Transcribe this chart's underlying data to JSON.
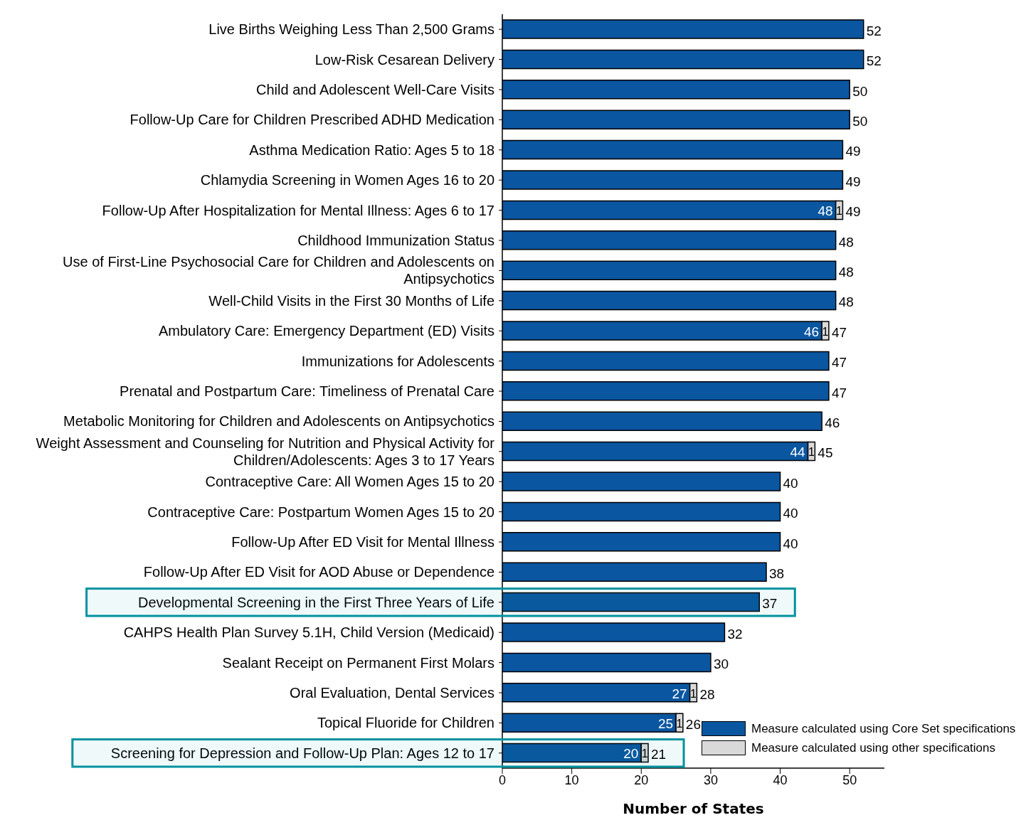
{
  "chart_data": {
    "type": "bar",
    "orientation": "horizontal",
    "stacked": true,
    "xlabel": "Number of States",
    "categories": [
      "Live Births Weighing Less Than 2,500 Grams",
      "Low-Risk Cesarean Delivery",
      "Child and Adolescent Well-Care Visits",
      "Follow-Up Care for Children Prescribed ADHD Medication",
      "Asthma Medication Ratio: Ages 5 to 18",
      "Chlamydia Screening in Women Ages 16 to 20",
      "Follow-Up After Hospitalization for Mental Illness: Ages 6 to 17",
      "Childhood Immunization Status",
      "Use of First-Line Psychosocial Care for Children and Adolescents on Antipsychotics",
      "Well-Child Visits in the First 30 Months of Life",
      "Ambulatory Care: Emergency Department (ED) Visits",
      "Immunizations for Adolescents",
      "Prenatal and Postpartum Care: Timeliness of Prenatal Care",
      "Metabolic Monitoring for Children and Adolescents on Antipsychotics",
      "Weight Assessment and Counseling for Nutrition and Physical Activity for Children/Adolescents: Ages 3 to 17 Years",
      "Contraceptive Care: All Women Ages 15 to 20",
      "Contraceptive Care: Postpartum Women Ages 15 to 20",
      "Follow-Up After ED Visit for Mental Illness",
      "Follow-Up After ED Visit for AOD Abuse or Dependence",
      "Developmental Screening in the First Three Years of Life",
      "CAHPS Health Plan Survey 5.1H, Child Version (Medicaid)",
      "Sealant Receipt on Permanent First Molars",
      "Oral Evaluation, Dental Services",
      "Topical Fluoride for Children",
      "Screening for Depression and Follow-Up Plan: Ages 12 to 17"
    ],
    "series": [
      {
        "name": "Measure calculated using Core Set specifications",
        "color": "#0a56a0",
        "values": [
          52,
          52,
          50,
          50,
          49,
          49,
          48,
          48,
          48,
          48,
          46,
          47,
          47,
          46,
          44,
          40,
          40,
          40,
          38,
          37,
          32,
          30,
          27,
          25,
          20
        ],
        "value_labels": [
          null,
          null,
          null,
          null,
          null,
          null,
          "48",
          null,
          null,
          null,
          "46",
          null,
          null,
          null,
          "44",
          null,
          null,
          null,
          null,
          null,
          null,
          null,
          "27",
          "25",
          "20"
        ]
      },
      {
        "name": "Measure calculated using other specifications",
        "color": "#d9d9d9",
        "values": [
          0,
          0,
          0,
          0,
          0,
          0,
          1,
          0,
          0,
          0,
          1,
          0,
          0,
          0,
          1,
          0,
          0,
          0,
          0,
          0,
          0,
          0,
          1,
          1,
          1
        ],
        "value_labels": [
          null,
          null,
          null,
          null,
          null,
          null,
          "1",
          null,
          null,
          null,
          "1",
          null,
          null,
          null,
          "1",
          null,
          null,
          null,
          null,
          null,
          null,
          null,
          "1",
          "1",
          "1"
        ]
      }
    ],
    "totals": [
      "52",
      "52",
      "50",
      "50",
      "49",
      "49",
      "49",
      "48",
      "48",
      "48",
      "47",
      "47",
      "47",
      "46",
      "45",
      "40",
      "40",
      "40",
      "38",
      "37",
      "32",
      "30",
      "28",
      "26",
      "21"
    ],
    "xlim": [
      0,
      55
    ],
    "xticks": [
      0,
      10,
      20,
      30,
      40,
      50
    ],
    "grid": false,
    "legend": "bottom right",
    "bands": [
      {
        "axis": "y",
        "from": "Developmental Screening in the First Three Years of Life",
        "to": "Developmental Screening in the First Three Years of Life",
        "color": "#00929f"
      },
      {
        "axis": "y",
        "from": "Screening for Depression and Follow-Up Plan: Ages 12 to 17",
        "to": "Screening for Depression and Follow-Up Plan: Ages 12 to 17",
        "color": "#00929f"
      }
    ]
  }
}
